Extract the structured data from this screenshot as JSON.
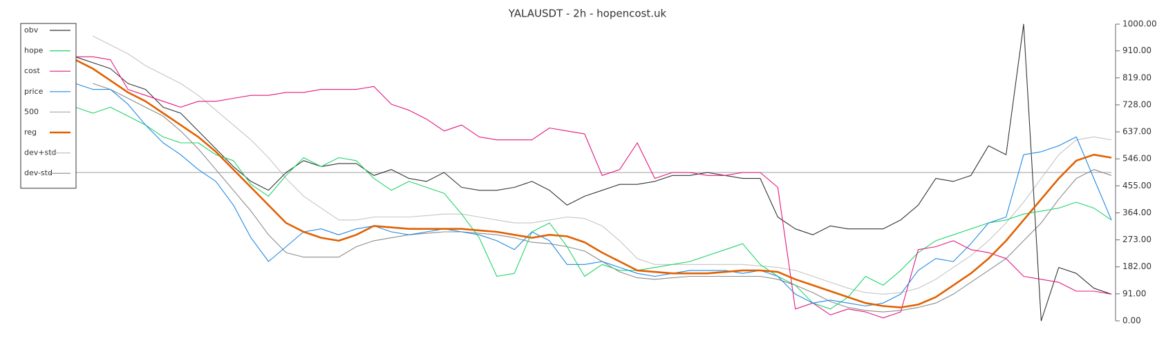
{
  "chart_data": {
    "type": "line",
    "title": "YALAUSDT - 2h - hopencost.uk",
    "legend": "upper left",
    "y_axis_side": "right",
    "ylim": [
      0,
      1000
    ],
    "yticks": [
      {
        "value": 0,
        "label": "0.00"
      },
      {
        "value": 91,
        "label": "91.00"
      },
      {
        "value": 182,
        "label": "182.00"
      },
      {
        "value": 273,
        "label": "273.00"
      },
      {
        "value": 364,
        "label": "364.00"
      },
      {
        "value": 455,
        "label": "455.00"
      },
      {
        "value": 546,
        "label": "546.00"
      },
      {
        "value": 637,
        "label": "637.00"
      },
      {
        "value": 728,
        "label": "728.00"
      },
      {
        "value": 819,
        "label": "819.00"
      },
      {
        "value": 910,
        "label": "910.00"
      },
      {
        "value": 1000,
        "label": "1000.00"
      }
    ],
    "series": [
      {
        "name": "obv",
        "color": "#333333",
        "values": [
          890,
          870,
          850,
          800,
          780,
          720,
          700,
          640,
          580,
          520,
          470,
          440,
          500,
          540,
          520,
          530,
          530,
          490,
          510,
          480,
          470,
          500,
          450,
          440,
          440,
          450,
          470,
          440,
          390,
          420,
          440,
          460,
          460,
          470,
          490,
          490,
          500,
          490,
          480,
          480,
          350,
          310,
          290,
          320,
          310,
          310,
          310,
          340,
          390,
          480,
          470,
          490,
          590,
          560,
          1000,
          0,
          180,
          160,
          110,
          90
        ]
      },
      {
        "name": "hope",
        "color": "#1fd36a",
        "values": [
          720,
          700,
          720,
          690,
          660,
          620,
          600,
          600,
          560,
          540,
          460,
          420,
          490,
          550,
          520,
          550,
          540,
          480,
          440,
          470,
          450,
          430,
          360,
          280,
          150,
          160,
          300,
          330,
          250,
          150,
          190,
          170,
          170,
          180,
          190,
          200,
          220,
          240,
          260,
          190,
          150,
          120,
          60,
          40,
          80,
          150,
          120,
          170,
          230,
          270,
          290,
          310,
          330,
          340,
          360,
          370,
          380,
          400,
          380,
          340
        ]
      },
      {
        "name": "cost",
        "color": "#e3177f",
        "values": [
          890,
          890,
          880,
          780,
          760,
          740,
          720,
          740,
          740,
          750,
          760,
          760,
          770,
          770,
          780,
          780,
          780,
          790,
          730,
          710,
          680,
          640,
          660,
          620,
          610,
          610,
          610,
          650,
          640,
          630,
          490,
          510,
          600,
          480,
          500,
          500,
          490,
          490,
          500,
          500,
          450,
          40,
          60,
          20,
          40,
          30,
          10,
          30,
          240,
          250,
          270,
          240,
          230,
          210,
          150,
          140,
          130,
          100,
          100,
          90
        ]
      },
      {
        "name": "price",
        "color": "#1e88e5",
        "values": [
          800,
          780,
          780,
          730,
          660,
          600,
          560,
          510,
          470,
          390,
          280,
          200,
          250,
          300,
          310,
          290,
          310,
          320,
          300,
          290,
          300,
          310,
          300,
          290,
          270,
          240,
          300,
          270,
          190,
          190,
          200,
          180,
          160,
          150,
          160,
          170,
          170,
          170,
          160,
          170,
          150,
          90,
          60,
          70,
          60,
          50,
          60,
          90,
          170,
          210,
          200,
          260,
          330,
          350,
          560,
          570,
          590,
          620,
          480,
          340
        ]
      },
      {
        "name": "500",
        "color": "#b0b0b0",
        "value": 500
      },
      {
        "name": "reg",
        "color": "#e06000",
        "values": [
          880,
          850,
          810,
          770,
          740,
          700,
          660,
          620,
          570,
          510,
          450,
          390,
          330,
          300,
          280,
          270,
          290,
          320,
          315,
          310,
          310,
          310,
          310,
          305,
          300,
          290,
          280,
          290,
          285,
          265,
          230,
          200,
          170,
          165,
          160,
          160,
          160,
          165,
          170,
          170,
          165,
          140,
          120,
          100,
          80,
          60,
          50,
          45,
          55,
          80,
          120,
          160,
          210,
          270,
          340,
          410,
          480,
          540,
          560,
          550
        ]
      },
      {
        "name": "dev+std",
        "color": "#c4c4c4",
        "values": [
          null,
          960,
          930,
          900,
          860,
          830,
          800,
          760,
          710,
          660,
          610,
          550,
          480,
          420,
          380,
          340,
          340,
          350,
          350,
          350,
          355,
          360,
          360,
          350,
          340,
          330,
          330,
          340,
          350,
          345,
          320,
          270,
          210,
          190,
          190,
          190,
          190,
          190,
          190,
          185,
          180,
          170,
          150,
          130,
          110,
          95,
          90,
          95,
          110,
          140,
          180,
          220,
          270,
          330,
          400,
          480,
          560,
          610,
          620,
          610
        ]
      },
      {
        "name": "dev-std",
        "color": "#8a8a8a",
        "values": [
          null,
          800,
          780,
          750,
          720,
          690,
          640,
          580,
          510,
          440,
          370,
          290,
          230,
          215,
          215,
          215,
          250,
          270,
          280,
          290,
          295,
          300,
          300,
          295,
          290,
          280,
          265,
          260,
          250,
          235,
          200,
          165,
          145,
          140,
          145,
          150,
          150,
          150,
          150,
          150,
          140,
          120,
          95,
          65,
          45,
          35,
          30,
          35,
          45,
          60,
          90,
          130,
          170,
          210,
          270,
          330,
          410,
          480,
          510,
          490
        ]
      }
    ]
  }
}
